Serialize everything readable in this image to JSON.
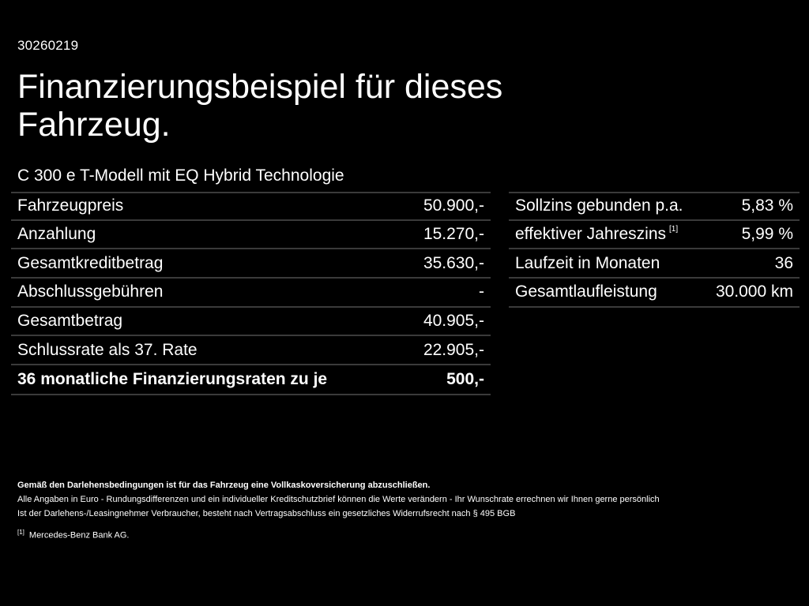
{
  "reference": "30260219",
  "title_line1": "Finanzierungsbeispiel für dieses",
  "title_line2": "Fahrzeug.",
  "model": "C 300 e T-Modell mit EQ Hybrid Technologie",
  "left_table": [
    {
      "label": "Fahrzeugpreis",
      "value": "50.900,-"
    },
    {
      "label": "Anzahlung",
      "value": "15.270,-"
    },
    {
      "label": "Gesamtkreditbetrag",
      "value": "35.630,-"
    },
    {
      "label": "Abschlussgebühren",
      "value": "-"
    },
    {
      "label": "Gesamtbetrag",
      "value": "40.905,-"
    },
    {
      "label": "Schlussrate als 37. Rate",
      "value": "22.905,-"
    }
  ],
  "monthly_rate": {
    "label": "36 monatliche Finanzierungsraten zu je",
    "value": "500,-"
  },
  "right_table": [
    {
      "label": "Sollzins gebunden p.a.",
      "value": "5,83 %"
    },
    {
      "label": "effektiver Jahreszins",
      "sup": "[1]",
      "value": "5,99 %"
    },
    {
      "label": "Laufzeit in Monaten",
      "value": "36"
    },
    {
      "label": "Gesamtlaufleistung",
      "value": "30.000 km"
    }
  ],
  "footnotes": {
    "insurance": "Gemäß den Darlehensbedingungen ist für das Fahrzeug eine Vollkaskoversicherung abzuschließen.",
    "line1": "Alle Angaben in Euro - Rundungsdifferenzen und ein individueller Kreditschutzbrief können die Werte verändern - Ihr Wunschrate errechnen wir Ihnen gerne persönlich",
    "line2": "Ist der Darlehens-/Leasingnehmer Verbraucher, besteht nach Vertragsabschluss ein gesetzliches Widerrufsrecht nach § 495 BGB",
    "ref_mark": "[1]",
    "ref_text": "Mercedes-Benz Bank AG."
  }
}
